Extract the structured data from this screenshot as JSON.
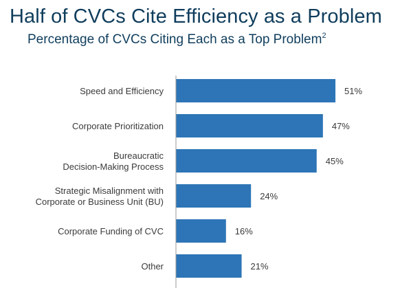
{
  "title": "Half of CVCs Cite Efficiency as a Problem",
  "subtitle": "Percentage of CVCs Citing Each as a Top Problem",
  "subtitle_footnote": "2",
  "colors": {
    "bar": "#2d75b6",
    "axis": "#9a9a9a",
    "title": "#0f3d5c",
    "text": "#3a3a3a"
  },
  "chart_data": {
    "type": "bar",
    "orientation": "horizontal",
    "title": "Half of CVCs Cite Efficiency as a Problem",
    "subtitle": "Percentage of CVCs Citing Each as a Top Problem",
    "categories": [
      [
        "Speed and Efficiency"
      ],
      [
        "Corporate Prioritization"
      ],
      [
        "Bureaucratic",
        "Decision-Making Process"
      ],
      [
        "Strategic Misalignment with",
        "Corporate or Business Unit (BU)"
      ],
      [
        "Corporate Funding of CVC"
      ],
      [
        "Other"
      ]
    ],
    "values": [
      51,
      47,
      45,
      24,
      16,
      21
    ],
    "data_labels": [
      "51%",
      "47%",
      "45%",
      "24%",
      "16%",
      "21%"
    ],
    "unit": "%",
    "xlim": [
      0,
      58
    ],
    "grid": false,
    "legend": "none"
  }
}
